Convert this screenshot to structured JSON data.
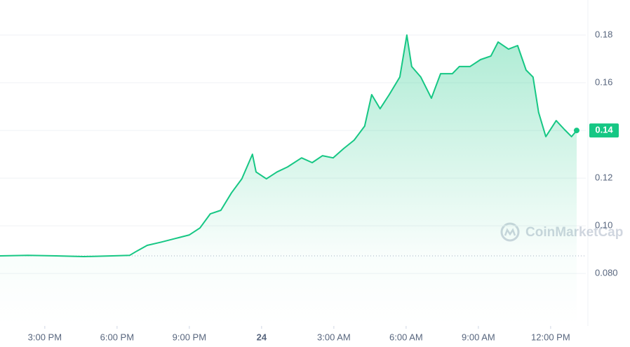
{
  "chart_data": {
    "type": "line",
    "watermark": "CoinMarketCap",
    "color": "#16c784",
    "x": [
      13.14,
      14.3,
      15.47,
      16.63,
      17.8,
      18.52,
      18.82,
      19.25,
      19.84,
      20.42,
      21.0,
      21.44,
      21.87,
      22.31,
      22.75,
      23.18,
      23.62,
      23.77,
      24.2,
      24.64,
      25.08,
      25.66,
      26.1,
      26.53,
      26.97,
      27.41,
      27.84,
      28.28,
      28.57,
      28.92,
      29.3,
      29.74,
      30.03,
      30.23,
      30.61,
      31.05,
      31.43,
      31.92,
      32.21,
      32.65,
      33.09,
      33.52,
      33.82,
      34.25,
      34.63,
      34.98,
      35.27,
      35.5,
      35.8,
      36.23,
      36.58,
      36.87,
      37.08
    ],
    "values": [
      0.0874,
      0.0876,
      0.0874,
      0.0871,
      0.0874,
      0.0876,
      0.0894,
      0.0918,
      0.0932,
      0.0947,
      0.0962,
      0.0991,
      0.105,
      0.1065,
      0.1138,
      0.1197,
      0.13,
      0.1226,
      0.1197,
      0.1226,
      0.1247,
      0.1285,
      0.1265,
      0.1294,
      0.1285,
      0.1324,
      0.1359,
      0.1418,
      0.155,
      0.1491,
      0.155,
      0.1624,
      0.18,
      0.1668,
      0.1624,
      0.1535,
      0.1638,
      0.1638,
      0.1668,
      0.1668,
      0.1697,
      0.1712,
      0.1771,
      0.1741,
      0.1756,
      0.1653,
      0.1624,
      0.1476,
      0.1374,
      0.1441,
      0.1403,
      0.1374,
      0.14
    ],
    "xlim": [
      13.14,
      37.46
    ],
    "xticks": [
      {
        "value": 15,
        "label": "3:00 PM"
      },
      {
        "value": 18,
        "label": "6:00 PM"
      },
      {
        "value": 21,
        "label": "9:00 PM"
      },
      24,
      {
        "value": 27,
        "label": "3:00 AM"
      },
      {
        "value": 30,
        "label": "6:00 AM"
      },
      {
        "value": 33,
        "label": "9:00 AM"
      },
      {
        "value": 36,
        "label": "12:00 PM"
      }
    ],
    "ylim": [
      0.058,
      0.1947
    ],
    "yticks": [
      0.18,
      0.16,
      0.14,
      0.12,
      {
        "value": 0.1,
        "label": "0.10"
      },
      {
        "value": 0.08,
        "label": "0.080"
      }
    ],
    "grid": true
  }
}
